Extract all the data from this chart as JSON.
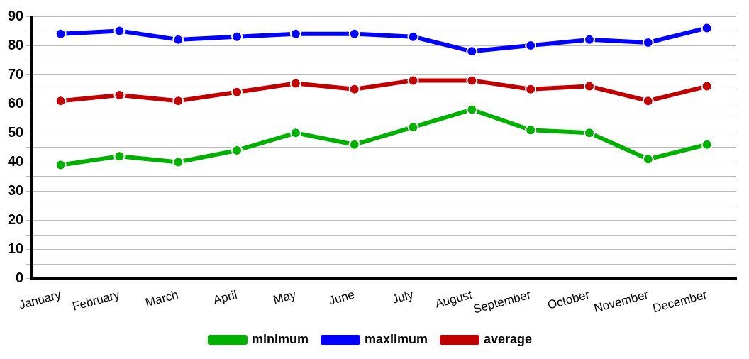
{
  "chart_data": {
    "type": "line",
    "categories": [
      "January",
      "February",
      "March",
      "April",
      "May",
      "June",
      "July",
      "August",
      "September",
      "October",
      "November",
      "December"
    ],
    "series": [
      {
        "name": "minimum",
        "color": "#00b000",
        "values": [
          39,
          42,
          40,
          44,
          50,
          46,
          52,
          58,
          51,
          50,
          41,
          46
        ]
      },
      {
        "name": "maxiimum",
        "color": "#0000ff",
        "values": [
          84,
          85,
          82,
          83,
          84,
          84,
          83,
          78,
          80,
          82,
          81,
          86
        ]
      },
      {
        "name": "average",
        "color": "#c00000",
        "values": [
          61,
          63,
          61,
          64,
          67,
          65,
          68,
          68,
          65,
          66,
          61,
          66
        ]
      }
    ],
    "ylim": [
      0,
      90
    ],
    "yticks": [
      0,
      {
        "value": 5,
        "label": null
      },
      10,
      {
        "value": 15,
        "label": null
      },
      20,
      {
        "value": 25,
        "label": null
      },
      30,
      {
        "value": 35,
        "label": null
      },
      40,
      {
        "value": 45,
        "label": null
      },
      50,
      {
        "value": 55,
        "label": null
      },
      60,
      {
        "value": 65,
        "label": null
      },
      70,
      {
        "value": 75,
        "label": null
      },
      80,
      {
        "value": 85,
        "label": null
      },
      90
    ],
    "grid": "y",
    "legend": "bottom",
    "marker": "circle",
    "line_style": "solid"
  }
}
